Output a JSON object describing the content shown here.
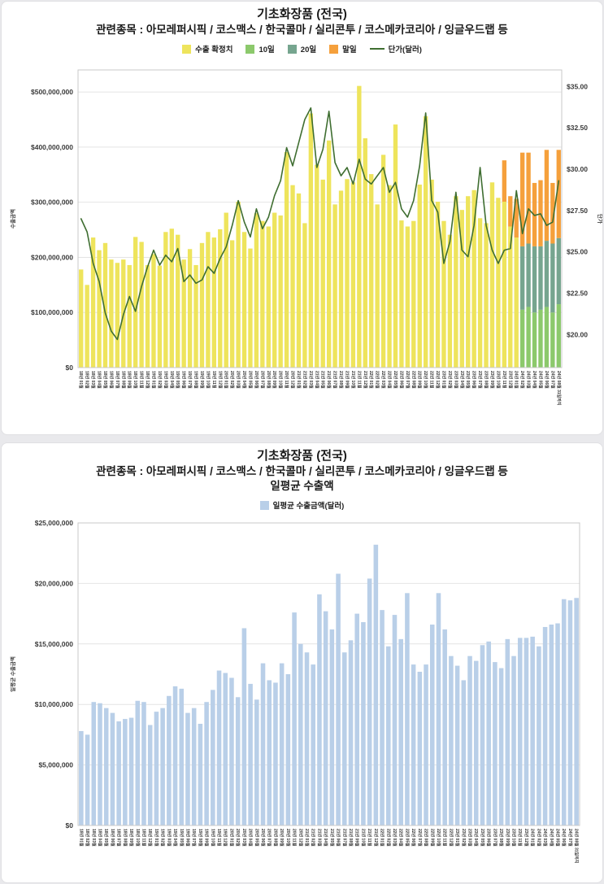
{
  "page": {
    "background": "#e9e9ec"
  },
  "chart1": {
    "title": "기초화장품 (전국)",
    "subtitle": "관련종목 : 아모레퍼시픽 / 코스맥스 / 한국콜마 / 실리콘투 / 코스메카코리아 / 잉글우드랩  등",
    "y_left_title": "수출금액",
    "y_right_title": "단가",
    "legend": [
      {
        "label": "수출 확정치",
        "color": "#eee45c",
        "swatch": "square"
      },
      {
        "label": "10일",
        "color": "#8cc96c",
        "swatch": "square"
      },
      {
        "label": "20일",
        "color": "#76a58f",
        "swatch": "square"
      },
      {
        "label": "말일",
        "color": "#f5a03c",
        "swatch": "square"
      },
      {
        "label": "단가(달러)",
        "color": "#3f6e31",
        "swatch": "line"
      }
    ]
  },
  "chart2": {
    "title": "기초화장품 (전국)",
    "subtitle": "관련종목 : 아모레퍼시픽 / 코스맥스 / 한국콜마 / 실리콘투 / 코스메카코리아 / 잉글우드랩  등",
    "subtitle2": "일평균 수출액",
    "y_left_title": "일평균 수출금액",
    "legend": [
      {
        "label": "일평균 수출금액(달러)",
        "color": "#b9cfe8",
        "swatch": "square"
      }
    ]
  },
  "chart_data": [
    {
      "type": "bar",
      "subtype": "stacked-bar-with-line",
      "title": "기초화장품 (전국) 월별 수출금액 및 단가(달러)",
      "xlabel": "",
      "ylabel_left": "수출금액",
      "ylabel_right": "단가",
      "grid": true,
      "legend_position": "top-center",
      "ylim_left": [
        0,
        540000000
      ],
      "yticks_left": [
        0,
        100000000,
        200000000,
        300000000,
        400000000,
        500000000
      ],
      "ylim_right": [
        18,
        36
      ],
      "yticks_right": [
        20,
        22.5,
        25,
        27.5,
        30,
        32.5,
        35
      ],
      "categories": [
        "18년 01월",
        "18년 02월",
        "18년 03월",
        "18년 04월",
        "18년 05월",
        "18년 06월",
        "18년 07월",
        "18년 08월",
        "18년 09월",
        "18년 10월",
        "18년 11월",
        "18년 12월",
        "19년 01월",
        "19년 02월",
        "19년 03월",
        "19년 04월",
        "19년 05월",
        "19년 06월",
        "19년 07월",
        "19년 08월",
        "19년 09월",
        "19년 10월",
        "19년 11월",
        "19년 12월",
        "20년 01월",
        "20년 02월",
        "20년 03월",
        "20년 04월",
        "20년 05월",
        "20년 06월",
        "20년 07월",
        "20년 08월",
        "20년 09월",
        "20년 10월",
        "20년 11월",
        "20년 12월",
        "21년 01월",
        "21년 02월",
        "21년 03월",
        "21년 04월",
        "21년 05월",
        "21년 06월",
        "21년 07월",
        "21년 08월",
        "21년 09월",
        "21년 10월",
        "21년 11월",
        "21년 12월",
        "22년 01월",
        "22년 02월",
        "22년 03월",
        "22년 04월",
        "22년 05월",
        "22년 06월",
        "22년 07월",
        "22년 08월",
        "22년 09월",
        "22년 10월",
        "22년 11월",
        "22년 12월",
        "23년 01월",
        "23년 02월",
        "23년 03월",
        "23년 04월",
        "23년 05월",
        "23년 06월",
        "23년 07월",
        "23년 08월",
        "23년 09월",
        "23년 10월",
        "23년 11월",
        "23년 12월",
        "24년 01월",
        "24년 02월",
        "24년 03월",
        "24년 04월",
        "24년 05월",
        "24년 06월",
        "24년 07월",
        "24년 08월 31일까지"
      ],
      "series": [
        {
          "name": "수출 확정치",
          "key": "confirmed",
          "type": "bar",
          "color": "#eee45c",
          "values": [
            178000000,
            150000000,
            236000000,
            213000000,
            226000000,
            196000000,
            190000000,
            196000000,
            186000000,
            237000000,
            228000000,
            186000000,
            206000000,
            185000000,
            246000000,
            252000000,
            241000000,
            196000000,
            215000000,
            186000000,
            226000000,
            246000000,
            236000000,
            251000000,
            281000000,
            231000000,
            301000000,
            246000000,
            216000000,
            280000000,
            266000000,
            256000000,
            281000000,
            276000000,
            391000000,
            331000000,
            316000000,
            262000000,
            461000000,
            368000000,
            341000000,
            412000000,
            296000000,
            321000000,
            342000000,
            336000000,
            511000000,
            416000000,
            351000000,
            296000000,
            386000000,
            331000000,
            441000000,
            267000000,
            256000000,
            266000000,
            332000000,
            456000000,
            341000000,
            301000000,
            266000000,
            241000000,
            311000000,
            286000000,
            311000000,
            322000000,
            271000000,
            262000000,
            336000000,
            308000000,
            301000000,
            256000000,
            236000000,
            0,
            0,
            0,
            0,
            0,
            0,
            0
          ]
        },
        {
          "name": "10일",
          "key": "day10",
          "type": "bar",
          "color": "#8cc96c",
          "offset": 73,
          "values": [
            105000000,
            110000000,
            100000000,
            105000000,
            110000000,
            100000000,
            115000000
          ]
        },
        {
          "name": "20일",
          "key": "day20",
          "type": "bar",
          "color": "#76a58f",
          "offset": 73,
          "values": [
            115000000,
            115000000,
            120000000,
            115000000,
            120000000,
            125000000,
            120000000
          ]
        },
        {
          "name": "말일",
          "key": "eom",
          "type": "bar",
          "color": "#f5a03c",
          "offset": 70,
          "values": [
            75000000,
            55000000,
            70000000,
            170000000,
            165000000,
            115000000,
            120000000,
            165000000,
            110000000,
            160000000
          ]
        },
        {
          "name": "단가(달러)",
          "key": "unit-price",
          "type": "line",
          "axis": "right",
          "color": "#3f6e31",
          "values": [
            27.0,
            26.2,
            24.3,
            23.2,
            21.3,
            20.2,
            19.7,
            21.2,
            22.3,
            21.4,
            22.9,
            24.1,
            25.1,
            24.2,
            24.8,
            24.4,
            25.2,
            23.2,
            23.6,
            23.1,
            23.3,
            24.1,
            23.7,
            24.6,
            25.3,
            26.6,
            28.1,
            26.8,
            25.9,
            27.6,
            26.4,
            27.1,
            28.4,
            29.3,
            31.3,
            30.2,
            31.6,
            33.0,
            33.7,
            30.1,
            31.2,
            33.5,
            30.4,
            29.6,
            30.1,
            29.1,
            30.6,
            29.4,
            29.1,
            29.6,
            30.1,
            28.6,
            29.2,
            27.6,
            27.1,
            28.1,
            30.2,
            33.4,
            28.1,
            27.4,
            24.3,
            25.6,
            28.6,
            25.1,
            24.7,
            26.6,
            30.1,
            26.6,
            25.1,
            24.3,
            25.1,
            25.2,
            28.7,
            26.1,
            27.6,
            27.2,
            27.3,
            26.6,
            26.8,
            29.3
          ]
        }
      ]
    },
    {
      "type": "bar",
      "title": "기초화장품 (전국) 일평균 수출액",
      "xlabel": "",
      "ylabel_left": "일평균 수출금액",
      "grid": true,
      "legend_position": "top-center",
      "ylim_left": [
        0,
        25000000
      ],
      "yticks_left": [
        0,
        5000000,
        10000000,
        15000000,
        20000000,
        25000000
      ],
      "categories": [
        "18년 01월",
        "18년 02월",
        "18년 03월",
        "18년 04월",
        "18년 05월",
        "18년 06월",
        "18년 07월",
        "18년 08월",
        "18년 09월",
        "18년 10월",
        "18년 11월",
        "18년 12월",
        "19년 01월",
        "19년 02월",
        "19년 03월",
        "19년 04월",
        "19년 05월",
        "19년 06월",
        "19년 07월",
        "19년 08월",
        "19년 09월",
        "19년 10월",
        "19년 11월",
        "19년 12월",
        "20년 01월",
        "20년 02월",
        "20년 03월",
        "20년 04월",
        "20년 05월",
        "20년 06월",
        "20년 07월",
        "20년 08월",
        "20년 09월",
        "20년 10월",
        "20년 11월",
        "20년 12월",
        "21년 01월",
        "21년 02월",
        "21년 03월",
        "21년 04월",
        "21년 05월",
        "21년 06월",
        "21년 07월",
        "21년 08월",
        "21년 09월",
        "21년 10월",
        "21년 11월",
        "21년 12월",
        "22년 01월",
        "22년 02월",
        "22년 03월",
        "22년 04월",
        "22년 05월",
        "22년 06월",
        "22년 07월",
        "22년 08월",
        "22년 09월",
        "22년 10월",
        "22년 11월",
        "22년 12월",
        "23년 01월",
        "23년 02월",
        "23년 03월",
        "23년 04월",
        "23년 05월",
        "23년 06월",
        "23년 07월",
        "23년 08월",
        "23년 09월",
        "23년 10월",
        "23년 11월",
        "23년 12월",
        "24년 01월",
        "24년 02월",
        "24년 03월",
        "24년 04월",
        "24년 05월",
        "24년 06월",
        "24년 07월",
        "24년 08월 31일까지"
      ],
      "series": [
        {
          "name": "일평균 수출금액(달러)",
          "key": "daily-average",
          "type": "bar",
          "color": "#b9cfe8",
          "values": [
            7800000,
            7500000,
            10200000,
            10100000,
            9700000,
            9300000,
            8600000,
            8800000,
            8900000,
            10300000,
            10200000,
            8300000,
            9400000,
            9700000,
            10700000,
            11500000,
            11300000,
            9300000,
            9700000,
            8400000,
            10200000,
            11200000,
            12800000,
            12600000,
            12200000,
            10600000,
            16300000,
            11700000,
            10400000,
            13400000,
            12000000,
            11800000,
            13400000,
            12500000,
            17600000,
            15000000,
            14300000,
            13300000,
            19100000,
            17700000,
            16200000,
            20800000,
            14300000,
            15300000,
            17500000,
            16800000,
            20400000,
            23200000,
            17800000,
            14800000,
            17400000,
            15400000,
            19200000,
            13300000,
            12700000,
            13300000,
            16600000,
            19200000,
            16200000,
            14000000,
            13200000,
            12000000,
            14000000,
            13600000,
            14900000,
            15200000,
            13500000,
            13000000,
            15400000,
            14000000,
            15500000,
            15500000,
            15600000,
            14800000,
            16400000,
            16600000,
            16700000,
            18700000,
            18600000,
            18800000
          ]
        }
      ]
    }
  ]
}
